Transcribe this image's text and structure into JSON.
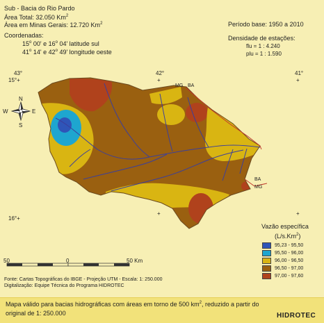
{
  "header": {
    "title": "Sub - Bacia do Rio Pardo",
    "area_total_label": "Área Total: 32.050 Km",
    "area_mg_label": "Área em Minas Gerais: 12.720 Km",
    "superscript_2": "2",
    "coord_title": "Coordenadas:",
    "lat_a": "15",
    "lat_a_min": " 00' e 16",
    "lat_b_min": " 04'  latitude sul",
    "lon_a": "41",
    "lon_a_min": " 14' e 42",
    "lon_b_min": " 49'  longitude oeste",
    "degree": "o",
    "base_period": "Período base:  1950  a  2010",
    "density_title": "Densidade de estações:",
    "flu": "flu  = 1 : 4.240",
    "plu": "plu = 1 : 1.590"
  },
  "grid_labels": {
    "lon_43": "43°",
    "lon_42": "42°",
    "lon_41": "41°",
    "lat_15": "15°",
    "lat_16": "16°",
    "cross": "+"
  },
  "state_labels": {
    "mg_top": "MG",
    "ba_top": "BA",
    "ba_right": "BA",
    "mg_right": "MG"
  },
  "compass": {
    "n": "N",
    "s": "S",
    "e": "E",
    "w": "W"
  },
  "legend": {
    "title": "Vazão específica",
    "unit": "(L/s.Km",
    "unit_close": ")",
    "classes": [
      {
        "label": "95,23 - 95,50",
        "color": "#2f55b8"
      },
      {
        "label": "95,50 - 96,00",
        "color": "#1ea6cf"
      },
      {
        "label": "96,00 - 96,50",
        "color": "#d9b512"
      },
      {
        "label": "96,50 - 97,00",
        "color": "#9a6010"
      },
      {
        "label": "97,00 - 97,60",
        "color": "#b0421c"
      }
    ]
  },
  "scale": {
    "left": "50",
    "mid": "0",
    "right": "50 Km"
  },
  "footer": {
    "source": "Fonte: Cartas Topográficas do IBGE - Projeção UTM - Escala: 1: 250.000",
    "digitization": "Digitalização: Equipe Técnica do Programa HIDROTEC",
    "note_line1a": "Mapa válido para bacias hidrográficas com áreas em torno de 500 km",
    "note_line1b": ", reduzido a partir do",
    "note_line2": "original de 1: 250.000",
    "brand": "HIDROTEC"
  },
  "colors": {
    "background": "#f7efb4",
    "river": "#3b3f9c",
    "border": "#c0392b"
  }
}
